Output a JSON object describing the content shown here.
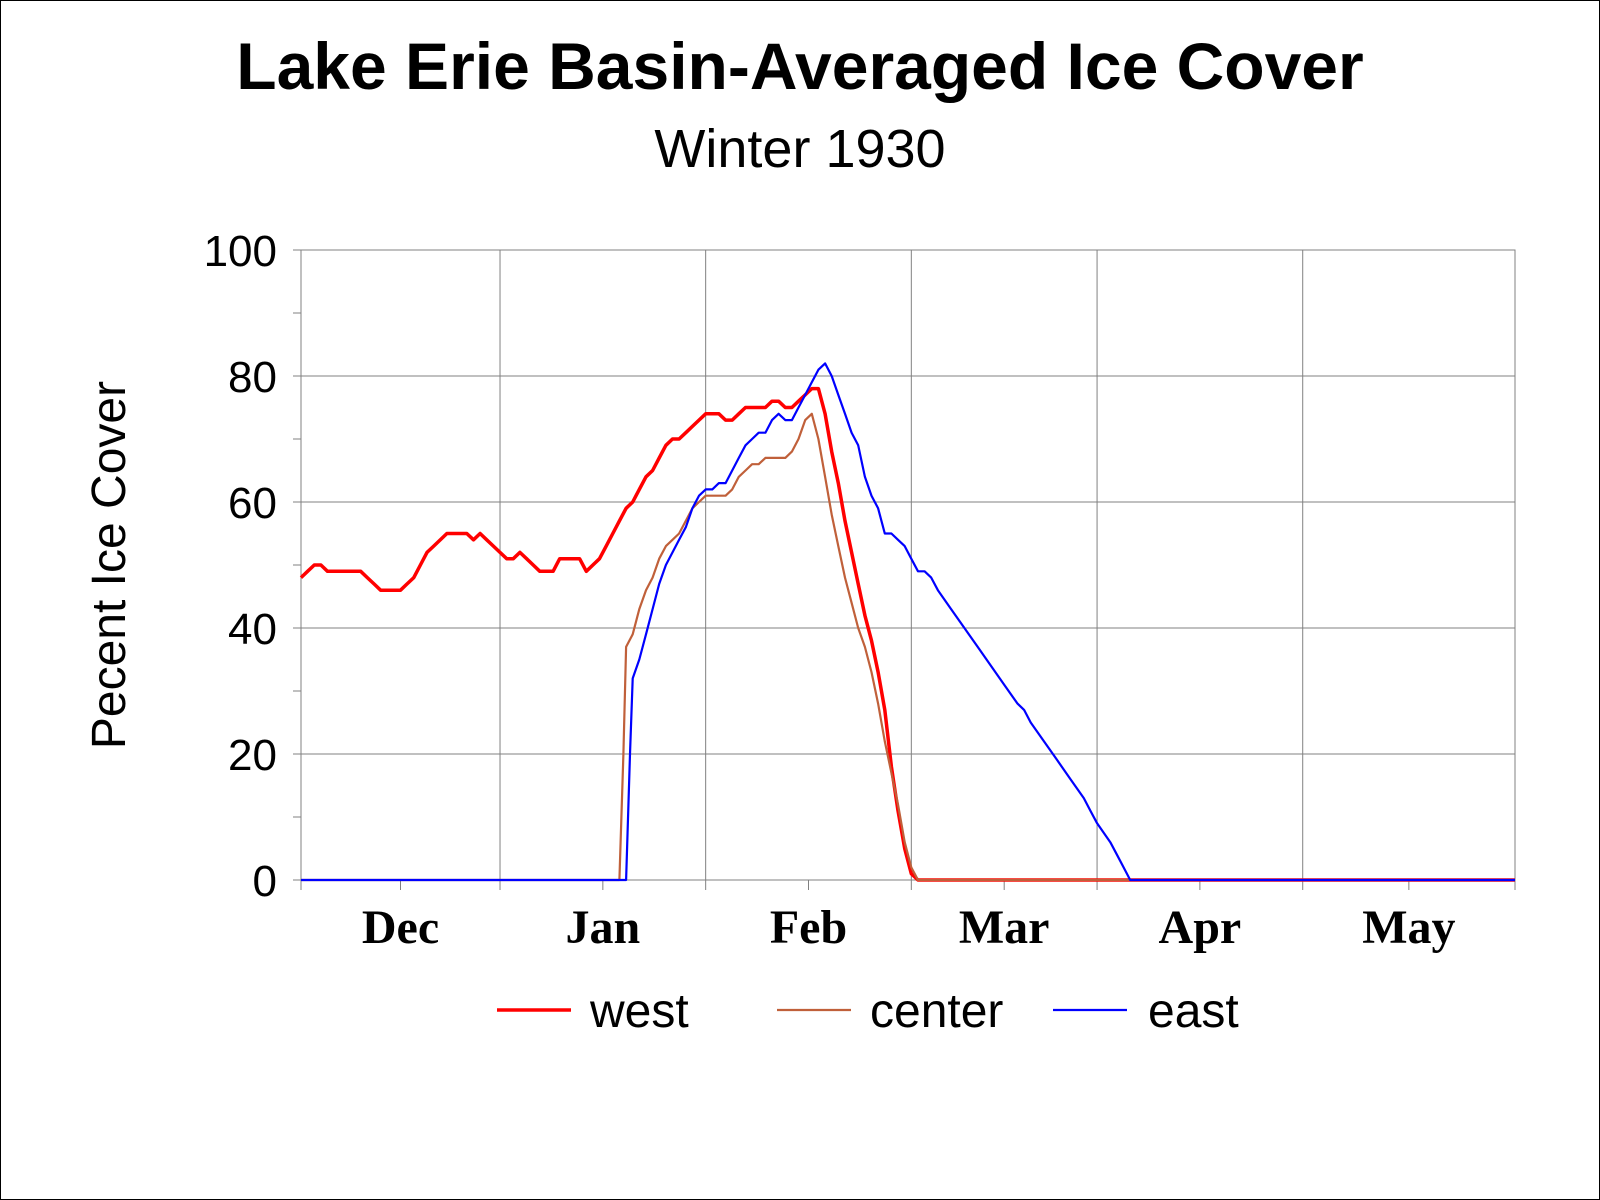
{
  "chart_data": {
    "type": "line",
    "title": "Lake Erie Basin-Averaged Ice Cover",
    "subtitle": "Winter 1930",
    "ylabel": "Pecent Ice Cover",
    "xlabel": "",
    "ylim": [
      0,
      100
    ],
    "yticks": [
      "0",
      "20",
      "40",
      "60",
      "80",
      "100"
    ],
    "ytick_values": [
      0,
      20,
      40,
      60,
      80,
      100
    ],
    "xlim_days": [
      0,
      183
    ],
    "months": [
      "Dec",
      "Jan",
      "Feb",
      "Mar",
      "Apr",
      "May"
    ],
    "month_start_days": [
      0,
      30,
      61,
      92,
      120,
      151
    ],
    "grid": true,
    "legend_position": "bottom",
    "series": [
      {
        "name": "west",
        "color": "#ff0000",
        "points": [
          [
            0,
            48
          ],
          [
            1,
            49
          ],
          [
            2,
            50
          ],
          [
            3,
            50
          ],
          [
            4,
            49
          ],
          [
            5,
            49
          ],
          [
            7,
            49
          ],
          [
            9,
            49
          ],
          [
            10,
            48
          ],
          [
            11,
            47
          ],
          [
            12,
            46
          ],
          [
            13,
            46
          ],
          [
            15,
            46
          ],
          [
            16,
            47
          ],
          [
            17,
            48
          ],
          [
            18,
            50
          ],
          [
            19,
            52
          ],
          [
            20,
            53
          ],
          [
            22,
            55
          ],
          [
            24,
            55
          ],
          [
            25,
            55
          ],
          [
            26,
            54
          ],
          [
            27,
            55
          ],
          [
            28,
            54
          ],
          [
            29,
            53
          ],
          [
            30,
            52
          ],
          [
            31,
            51
          ],
          [
            32,
            51
          ],
          [
            33,
            52
          ],
          [
            34,
            51
          ],
          [
            35,
            50
          ],
          [
            36,
            49
          ],
          [
            38,
            49
          ],
          [
            39,
            51
          ],
          [
            41,
            51
          ],
          [
            42,
            51
          ],
          [
            43,
            49
          ],
          [
            44,
            50
          ],
          [
            45,
            51
          ],
          [
            46,
            53
          ],
          [
            47,
            55
          ],
          [
            48,
            57
          ],
          [
            49,
            59
          ],
          [
            50,
            60
          ],
          [
            51,
            62
          ],
          [
            52,
            64
          ],
          [
            53,
            65
          ],
          [
            54,
            67
          ],
          [
            55,
            69
          ],
          [
            56,
            70
          ],
          [
            57,
            70
          ],
          [
            58,
            71
          ],
          [
            59,
            72
          ],
          [
            60,
            73
          ],
          [
            61,
            74
          ],
          [
            63,
            74
          ],
          [
            64,
            73
          ],
          [
            65,
            73
          ],
          [
            66,
            74
          ],
          [
            67,
            75
          ],
          [
            70,
            75
          ],
          [
            71,
            76
          ],
          [
            72,
            76
          ],
          [
            73,
            75
          ],
          [
            74,
            75
          ],
          [
            75,
            76
          ],
          [
            76,
            77
          ],
          [
            77,
            78
          ],
          [
            78,
            78
          ],
          [
            79,
            74
          ],
          [
            80,
            68
          ],
          [
            81,
            63
          ],
          [
            82,
            57
          ],
          [
            83,
            52
          ],
          [
            84,
            47
          ],
          [
            85,
            42
          ],
          [
            86,
            38
          ],
          [
            87,
            33
          ],
          [
            88,
            27
          ],
          [
            89,
            18
          ],
          [
            90,
            11
          ],
          [
            91,
            5
          ],
          [
            92,
            1
          ],
          [
            93,
            0
          ],
          [
            183,
            0
          ]
        ]
      },
      {
        "name": "center",
        "color": "#c0603a",
        "points": [
          [
            0,
            0
          ],
          [
            48,
            0
          ],
          [
            48.6,
            20
          ],
          [
            49,
            37
          ],
          [
            50,
            39
          ],
          [
            51,
            43
          ],
          [
            52,
            46
          ],
          [
            53,
            48
          ],
          [
            54,
            51
          ],
          [
            55,
            53
          ],
          [
            56,
            54
          ],
          [
            57,
            55
          ],
          [
            58,
            57
          ],
          [
            59,
            59
          ],
          [
            60,
            60
          ],
          [
            61,
            61
          ],
          [
            64,
            61
          ],
          [
            65,
            62
          ],
          [
            66,
            64
          ],
          [
            67,
            65
          ],
          [
            68,
            66
          ],
          [
            69,
            66
          ],
          [
            70,
            67
          ],
          [
            73,
            67
          ],
          [
            74,
            68
          ],
          [
            75,
            70
          ],
          [
            76,
            73
          ],
          [
            77,
            74
          ],
          [
            78,
            70
          ],
          [
            79,
            64
          ],
          [
            80,
            58
          ],
          [
            81,
            53
          ],
          [
            82,
            48
          ],
          [
            83,
            44
          ],
          [
            84,
            40
          ],
          [
            85,
            37
          ],
          [
            86,
            33
          ],
          [
            87,
            28
          ],
          [
            88,
            22
          ],
          [
            89,
            17
          ],
          [
            90,
            12
          ],
          [
            91,
            6
          ],
          [
            92,
            2
          ],
          [
            93,
            0
          ],
          [
            183,
            0
          ]
        ]
      },
      {
        "name": "east",
        "color": "#0000ff",
        "points": [
          [
            0,
            0
          ],
          [
            49,
            0
          ],
          [
            49.6,
            20
          ],
          [
            50,
            32
          ],
          [
            51,
            35
          ],
          [
            52,
            39
          ],
          [
            53,
            43
          ],
          [
            54,
            47
          ],
          [
            55,
            50
          ],
          [
            56,
            52
          ],
          [
            57,
            54
          ],
          [
            58,
            56
          ],
          [
            59,
            59
          ],
          [
            60,
            61
          ],
          [
            61,
            62
          ],
          [
            62,
            62
          ],
          [
            63,
            63
          ],
          [
            64,
            63
          ],
          [
            65,
            65
          ],
          [
            66,
            67
          ],
          [
            67,
            69
          ],
          [
            68,
            70
          ],
          [
            69,
            71
          ],
          [
            70,
            71
          ],
          [
            71,
            73
          ],
          [
            72,
            74
          ],
          [
            73,
            73
          ],
          [
            74,
            73
          ],
          [
            75,
            75
          ],
          [
            76,
            77
          ],
          [
            77,
            79
          ],
          [
            78,
            81
          ],
          [
            79,
            82
          ],
          [
            80,
            80
          ],
          [
            81,
            77
          ],
          [
            82,
            74
          ],
          [
            83,
            71
          ],
          [
            84,
            69
          ],
          [
            85,
            64
          ],
          [
            86,
            61
          ],
          [
            87,
            59
          ],
          [
            88,
            55
          ],
          [
            89,
            55
          ],
          [
            90,
            54
          ],
          [
            91,
            53
          ],
          [
            92,
            51
          ],
          [
            93,
            49
          ],
          [
            94,
            49
          ],
          [
            95,
            48
          ],
          [
            96,
            46
          ],
          [
            98,
            43
          ],
          [
            100,
            40
          ],
          [
            102,
            37
          ],
          [
            104,
            34
          ],
          [
            106,
            31
          ],
          [
            108,
            28
          ],
          [
            109,
            27
          ],
          [
            110,
            25
          ],
          [
            112,
            22
          ],
          [
            114,
            19
          ],
          [
            116,
            16
          ],
          [
            118,
            13
          ],
          [
            119,
            11
          ],
          [
            120,
            9
          ],
          [
            122,
            6
          ],
          [
            123,
            4
          ],
          [
            124,
            2
          ],
          [
            125,
            0
          ],
          [
            183,
            0
          ]
        ]
      }
    ]
  }
}
